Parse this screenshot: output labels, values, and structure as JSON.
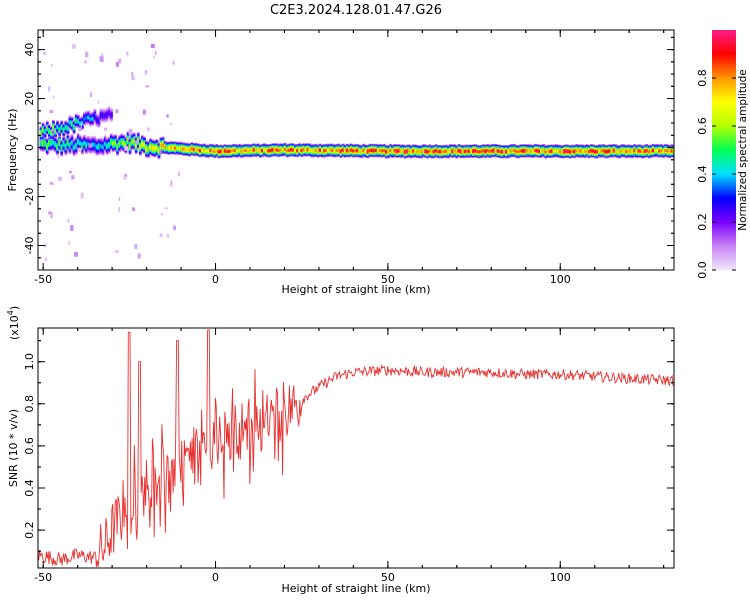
{
  "title": "C2E3.2024.128.01.47.G26",
  "top_panel": {
    "chart_data": {
      "type": "heatmap",
      "xlabel": "Height of straight line (km)",
      "ylabel": "Frequency (Hz)",
      "xlim": [
        -51.5,
        133
      ],
      "ylim": [
        -50,
        48
      ],
      "x_ticks": [
        -50,
        0,
        50,
        100
      ],
      "y_ticks": [
        -40,
        -20,
        0,
        20,
        40
      ],
      "colorbar": {
        "label": "Normalized spectral amplitude",
        "range": [
          0,
          1
        ],
        "ticks": [
          0.0,
          0.2,
          0.4,
          0.6,
          0.8
        ],
        "colormap": "rainbow",
        "colors": [
          "#f0e8fa",
          "#c882f5",
          "#7800ff",
          "#0000ff",
          "#00e1ff",
          "#00ff55",
          "#b4ff00",
          "#ffff00",
          "#ff9600",
          "#ff0000",
          "#ff1e8c"
        ]
      },
      "ridge": {
        "x": [
          -51,
          -45,
          -40,
          -35,
          -30,
          -25,
          -20,
          -10,
          0,
          20,
          50,
          100,
          133
        ],
        "frequency_hz": [
          1.5,
          1.0,
          1.0,
          0.5,
          1.5,
          2.0,
          0.5,
          -0.5,
          -1.5,
          -1.0,
          -1.5,
          -1.5,
          -1.5
        ],
        "amplitude": [
          0.55,
          0.55,
          0.5,
          0.45,
          0.6,
          0.65,
          0.7,
          0.85,
          0.9,
          0.85,
          0.95,
          0.95,
          0.85
        ]
      },
      "secondary_branch": {
        "x": [
          -51,
          -45,
          -40,
          -35,
          -30
        ],
        "frequency_hz": [
          6,
          8,
          10,
          12,
          13
        ],
        "amplitude": [
          0.6,
          0.55,
          0.5,
          0.35,
          0.25
        ]
      }
    }
  },
  "bottom_panel": {
    "chart_data": {
      "type": "line",
      "xlabel": "Height of straight line (km)",
      "ylabel": "SNR (10 * v/v)",
      "y_scale_label": "(x10",
      "y_scale_exponent": "4",
      "y_scale_suffix": ")",
      "xlim": [
        -51.5,
        133
      ],
      "ylim": [
        0.02,
        1.16
      ],
      "x_ticks": [
        -50,
        0,
        50,
        100
      ],
      "y_ticks": [
        0.2,
        0.4,
        0.6,
        0.8,
        1.0
      ],
      "series": [
        {
          "color": "#e8312f",
          "x": [
            -51,
            -45,
            -40,
            -35,
            -32,
            -30,
            -27,
            -25,
            -22,
            -20,
            -15,
            -10,
            -5,
            0,
            5,
            10,
            15,
            20,
            25,
            30,
            35,
            40,
            50,
            60,
            70,
            80,
            90,
            100,
            110,
            120,
            133
          ],
          "y": [
            0.08,
            0.06,
            0.08,
            0.07,
            0.12,
            0.2,
            0.28,
            0.3,
            0.36,
            0.42,
            0.48,
            0.52,
            0.56,
            0.6,
            0.65,
            0.7,
            0.72,
            0.76,
            0.82,
            0.88,
            0.93,
            0.95,
            0.96,
            0.95,
            0.95,
            0.95,
            0.94,
            0.94,
            0.93,
            0.92,
            0.91
          ]
        }
      ],
      "spikes": [
        {
          "x": -25,
          "y": 1.14
        },
        {
          "x": -22,
          "y": 1.0
        },
        {
          "x": -11,
          "y": 1.1
        },
        {
          "x": -2,
          "y": 1.15
        }
      ]
    }
  }
}
